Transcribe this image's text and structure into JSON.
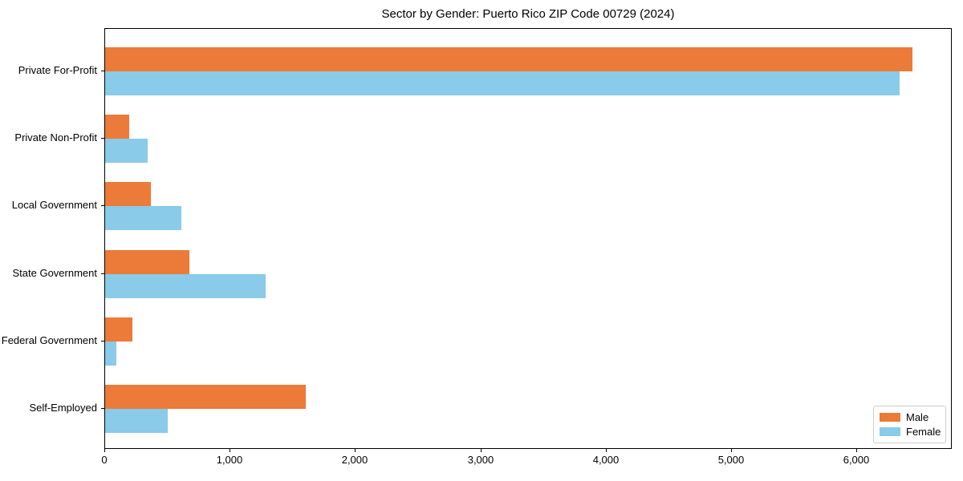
{
  "title": "Sector by Gender: Puerto Rico ZIP Code 00729 (2024)",
  "chart_data": {
    "type": "bar",
    "orientation": "horizontal",
    "title": "Sector by Gender: Puerto Rico ZIP Code 00729 (2024)",
    "xlabel": "",
    "ylabel": "",
    "categories": [
      "Private For-Profit",
      "Private Non-Profit",
      "Local Government",
      "State Government",
      "Federal Government",
      "Self-Employed"
    ],
    "series": [
      {
        "name": "Male",
        "color": "#EC7A38",
        "values": [
          6440,
          190,
          365,
          670,
          215,
          1600
        ]
      },
      {
        "name": "Female",
        "color": "#89CBE8",
        "values": [
          6340,
          340,
          610,
          1280,
          90,
          500
        ]
      }
    ],
    "xlim": [
      0,
      6760
    ],
    "x_ticks": [
      0,
      1000,
      2000,
      3000,
      4000,
      5000,
      6000
    ],
    "x_tick_labels": [
      "0",
      "1,000",
      "2,000",
      "3,000",
      "4,000",
      "5,000",
      "6,000"
    ],
    "grid": false,
    "legend_position": "lower right"
  },
  "legend": {
    "items": [
      {
        "label": "Male",
        "color": "#EC7A38"
      },
      {
        "label": "Female",
        "color": "#89CBE8"
      }
    ]
  }
}
